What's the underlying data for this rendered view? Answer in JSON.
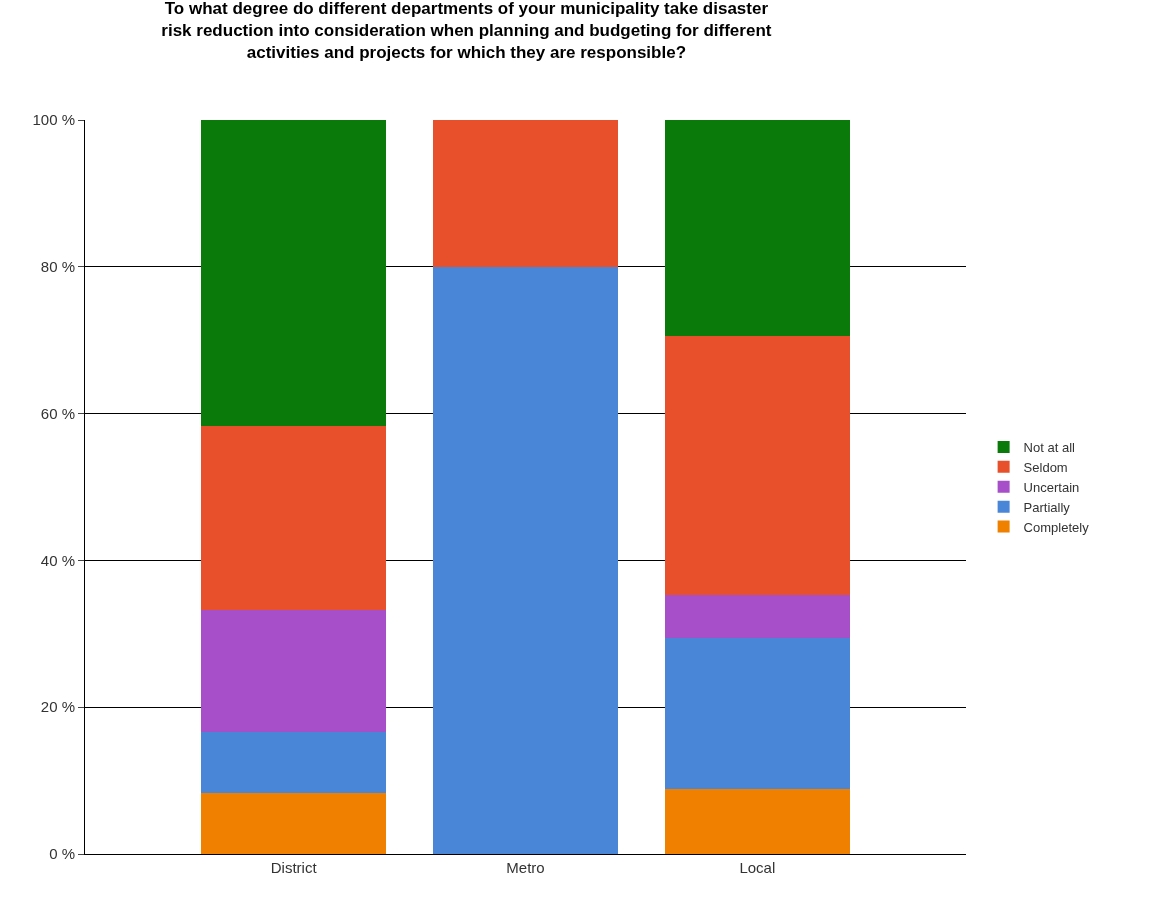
{
  "chart_data": {
    "type": "bar",
    "title": "To what degree do different departments of your municipality take disaster risk reduction into consideration when planning and budgeting for different activities and projects for which they are responsible?",
    "categories": [
      "District",
      "Metro",
      "Local"
    ],
    "stacked": true,
    "series": [
      {
        "name": "Completely",
        "color": "#f08000",
        "values": [
          8.3,
          0,
          8.8
        ]
      },
      {
        "name": "Partially",
        "color": "#4a86d8",
        "values": [
          8.3,
          80,
          20.6
        ]
      },
      {
        "name": "Uncertain",
        "color": "#a64fc9",
        "values": [
          16.7,
          0,
          5.9
        ]
      },
      {
        "name": "Seldom",
        "color": "#e8502c",
        "values": [
          25,
          20,
          35.3
        ]
      },
      {
        "name": "Not at all",
        "color": "#0a7a0a",
        "values": [
          41.7,
          0,
          29.4
        ]
      }
    ],
    "ylim": [
      0,
      100
    ],
    "yticks": [
      {
        "value": 0,
        "label": "0 %"
      },
      {
        "value": 20,
        "label": "20 %"
      },
      {
        "value": 40,
        "label": "40 %"
      },
      {
        "value": 60,
        "label": "60 %"
      },
      {
        "value": 80,
        "label": "80 %"
      },
      {
        "value": 100,
        "label": "100 %"
      }
    ],
    "grid": "y",
    "legend": "right"
  }
}
